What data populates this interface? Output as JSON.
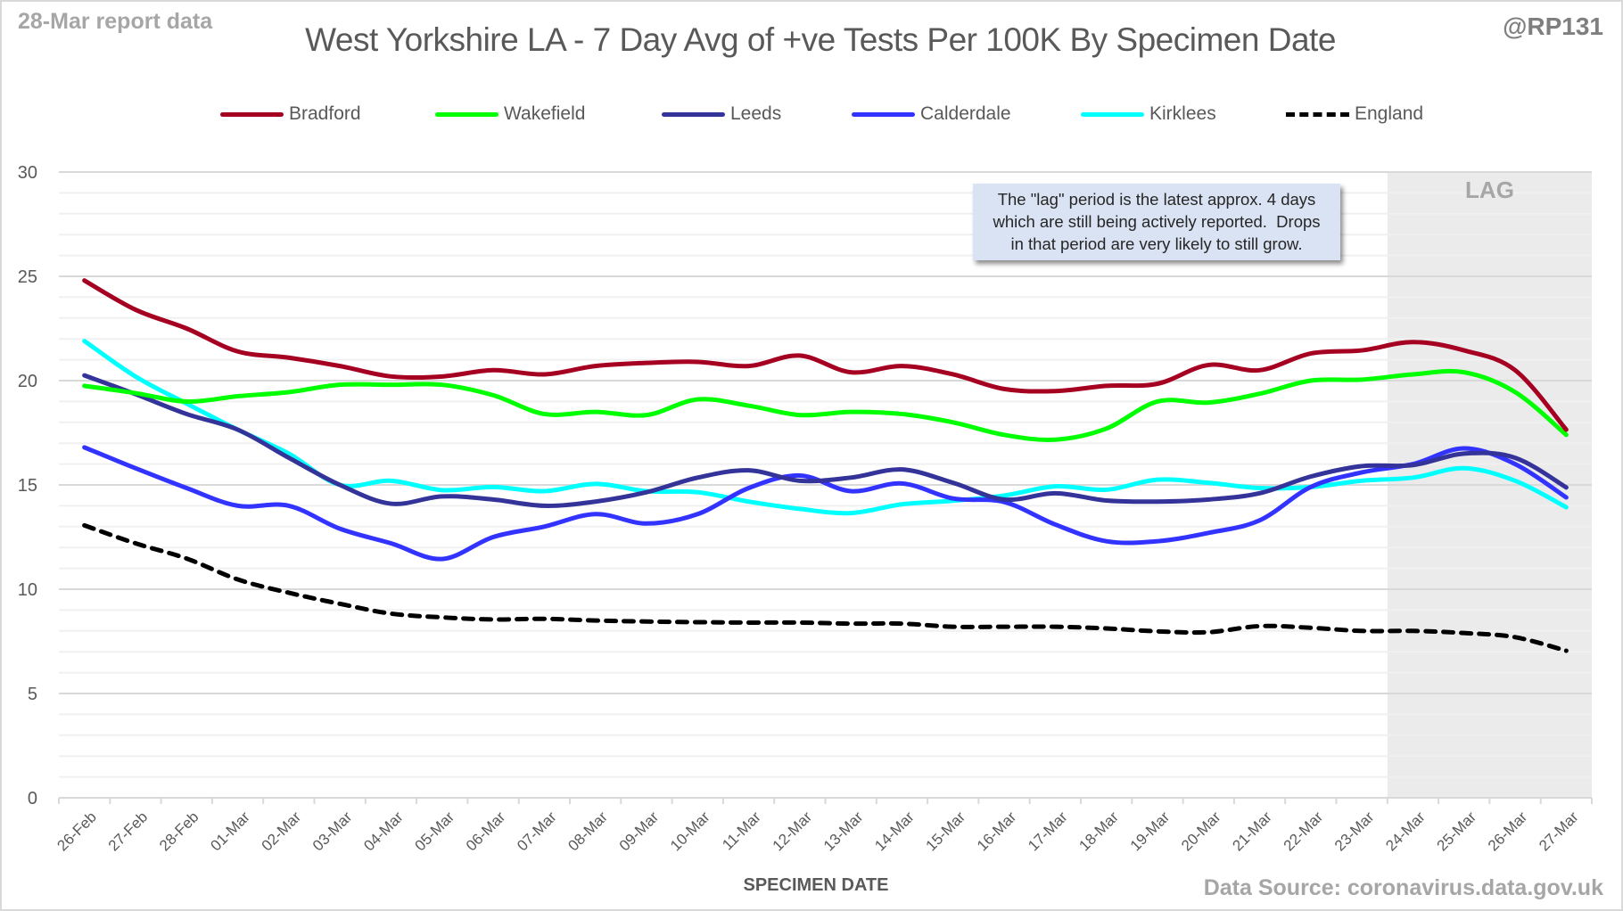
{
  "header": {
    "report_date": "28-Mar report data",
    "handle": "@RP131",
    "source": "Data Source: coronavirus.data.gov.uk"
  },
  "annotation": {
    "lines": [
      "The \"lag\" period is the latest approx. 4 days",
      "which are still being actively reported.  Drops",
      "in that period are very likely to still grow."
    ],
    "lag_label": "LAG"
  },
  "colors": {
    "Bradford": "#a50021",
    "Wakefield": "#00ff00",
    "Leeds": "#333399",
    "Calderdale": "#3333ff",
    "Kirklees": "#00ffff",
    "England": "#000000",
    "lag_shade": "#ebebeb",
    "annotation_bg": "#dae3f3"
  },
  "chart_data": {
    "type": "line",
    "title": "West Yorkshire LA - 7 Day Avg of +ve Tests Per 100K By Specimen Date",
    "xlabel": "SPECIMEN DATE",
    "ylabel": "",
    "ylim": [
      0,
      30
    ],
    "yticks": [
      0,
      5,
      10,
      15,
      20,
      25,
      30
    ],
    "minor_grid_step": 1,
    "grid": true,
    "legend_position": "top",
    "lag_period": [
      "24-Mar",
      "27-Mar"
    ],
    "categories": [
      "26-Feb",
      "27-Feb",
      "28-Feb",
      "01-Mar",
      "02-Mar",
      "03-Mar",
      "04-Mar",
      "05-Mar",
      "06-Mar",
      "07-Mar",
      "08-Mar",
      "09-Mar",
      "10-Mar",
      "11-Mar",
      "12-Mar",
      "13-Mar",
      "14-Mar",
      "15-Mar",
      "16-Mar",
      "17-Mar",
      "18-Mar",
      "19-Mar",
      "20-Mar",
      "21-Mar",
      "22-Mar",
      "23-Mar",
      "24-Mar",
      "25-Mar",
      "26-Mar",
      "27-Mar"
    ],
    "series": [
      {
        "name": "Bradford",
        "style": "solid",
        "values": [
          24.8,
          23.4,
          22.5,
          21.4,
          21.1,
          20.7,
          20.2,
          20.2,
          20.5,
          20.3,
          20.7,
          20.85,
          20.9,
          20.7,
          21.2,
          20.4,
          20.7,
          20.3,
          19.6,
          19.5,
          19.75,
          19.85,
          20.75,
          20.5,
          21.3,
          21.45,
          21.85,
          21.45,
          20.5,
          17.65
        ]
      },
      {
        "name": "Wakefield",
        "style": "solid",
        "values": [
          19.75,
          19.4,
          19.0,
          19.25,
          19.45,
          19.8,
          19.8,
          19.8,
          19.3,
          18.4,
          18.5,
          18.35,
          19.1,
          18.8,
          18.35,
          18.5,
          18.4,
          18.0,
          17.4,
          17.17,
          17.7,
          19.0,
          18.95,
          19.37,
          20.0,
          20.05,
          20.3,
          20.4,
          19.45,
          17.4
        ]
      },
      {
        "name": "Leeds",
        "style": "solid",
        "values": [
          20.25,
          19.35,
          18.4,
          17.65,
          16.3,
          15.0,
          14.1,
          14.45,
          14.3,
          14.0,
          14.2,
          14.65,
          15.35,
          15.7,
          15.2,
          15.35,
          15.74,
          15.1,
          14.3,
          14.6,
          14.25,
          14.2,
          14.3,
          14.6,
          15.4,
          15.9,
          15.95,
          16.5,
          16.3,
          14.88
        ]
      },
      {
        "name": "Calderdale",
        "style": "solid",
        "values": [
          16.8,
          15.8,
          14.85,
          14.0,
          14.0,
          12.9,
          12.2,
          11.45,
          12.5,
          13.0,
          13.6,
          13.15,
          13.6,
          14.85,
          15.45,
          14.7,
          15.07,
          14.35,
          14.18,
          13.1,
          12.3,
          12.3,
          12.7,
          13.3,
          14.9,
          15.6,
          16.0,
          16.75,
          16.0,
          14.4
        ]
      },
      {
        "name": "Kirklees",
        "style": "solid",
        "values": [
          21.9,
          20.2,
          18.9,
          17.65,
          16.5,
          15.0,
          15.2,
          14.75,
          14.9,
          14.7,
          15.05,
          14.7,
          14.65,
          14.2,
          13.85,
          13.65,
          14.07,
          14.24,
          14.49,
          14.93,
          14.77,
          15.25,
          15.1,
          14.85,
          14.9,
          15.2,
          15.35,
          15.8,
          15.2,
          13.93
        ]
      },
      {
        "name": "England",
        "style": "dashed",
        "values": [
          13.06,
          12.2,
          11.47,
          10.47,
          9.83,
          9.3,
          8.83,
          8.65,
          8.55,
          8.58,
          8.5,
          8.45,
          8.42,
          8.4,
          8.4,
          8.35,
          8.35,
          8.2,
          8.2,
          8.2,
          8.12,
          7.98,
          7.94,
          8.23,
          8.15,
          8.0,
          8.0,
          7.9,
          7.7,
          7.05
        ]
      }
    ]
  }
}
